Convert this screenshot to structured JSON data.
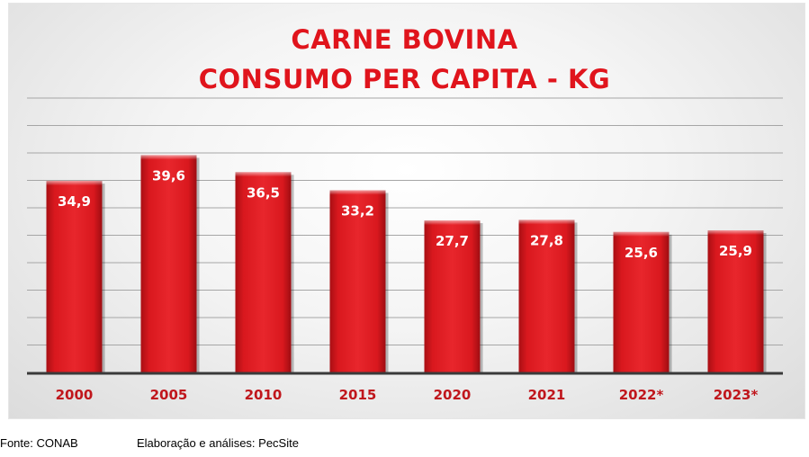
{
  "chart_data": {
    "type": "bar",
    "title": [
      "CARNE BOVINA",
      "CONSUMO PER CAPITA - KG"
    ],
    "categories": [
      "2000",
      "2005",
      "2010",
      "2015",
      "2020",
      "2021",
      "2022*",
      "2023*"
    ],
    "values": [
      34.9,
      39.6,
      36.5,
      33.2,
      27.7,
      27.8,
      25.6,
      25.9
    ],
    "value_labels": [
      "34,9",
      "39,6",
      "36,5",
      "33,2",
      "27,7",
      "27,8",
      "25,6",
      "25,9"
    ],
    "ylim": [
      0,
      50
    ],
    "y_grid_step": 5,
    "grid": true,
    "bar_color": "#d9181e",
    "label_color": "#c0161c",
    "gridline_color": "#a6a6a6"
  },
  "footer": {
    "source": "Fonte: CONAB",
    "credit": "Elaboração e análises: PecSite"
  }
}
